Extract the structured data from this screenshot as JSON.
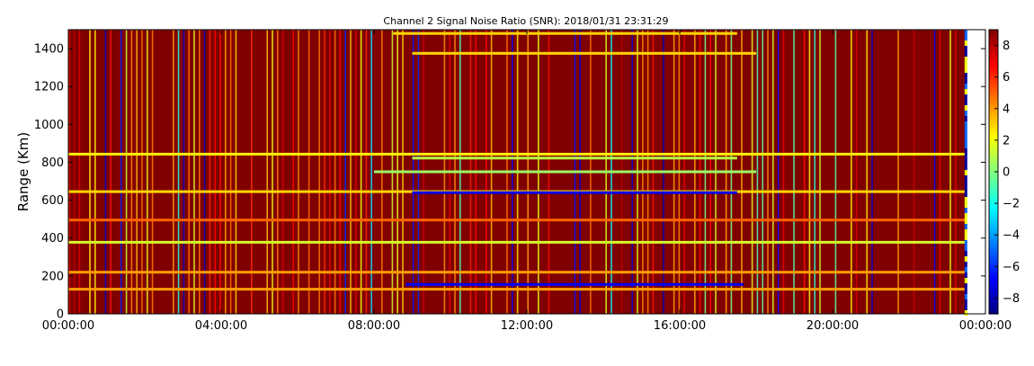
{
  "chart_data": {
    "type": "heatmap",
    "title": "Channel 2 Signal Noise Ratio (SNR): 2018/01/31 23:31:29",
    "xlabel": "",
    "ylabel": "Range (Km)",
    "x_range": [
      "00:00:00",
      "24:00:00"
    ],
    "x_ticks": [
      "00:00:00",
      "04:00:00",
      "08:00:00",
      "12:00:00",
      "16:00:00",
      "20:00:00",
      "00:00:00"
    ],
    "ylim": [
      0,
      1500
    ],
    "y_ticks": [
      0,
      200,
      400,
      600,
      800,
      1000,
      1200,
      1400
    ],
    "colorbar": {
      "colormap": "jet",
      "range": [
        -9,
        9
      ],
      "ticks": [
        -8,
        -6,
        -4,
        -2,
        0,
        2,
        4,
        6,
        8
      ]
    },
    "background_snr_db": 9,
    "data_end_time": "23:31:29",
    "features": [
      {
        "kind": "horizontal_band",
        "range_km": 843,
        "snr_db": 2.5,
        "from": "00:00:00",
        "to": "23:31:29"
      },
      {
        "kind": "horizontal_band",
        "range_km": 822,
        "snr_db": 1,
        "from": "09:00:00",
        "to": "17:30:00"
      },
      {
        "kind": "horizontal_band",
        "range_km": 750,
        "snr_db": 0.5,
        "from": "08:00:00",
        "to": "18:00:00"
      },
      {
        "kind": "horizontal_band",
        "range_km": 645,
        "snr_db": 3,
        "from": "00:00:00",
        "to": "23:31:29"
      },
      {
        "kind": "horizontal_band",
        "range_km": 640,
        "snr_db": -7,
        "from": "09:00:00",
        "to": "17:30:00"
      },
      {
        "kind": "horizontal_band",
        "range_km": 495,
        "snr_db": 5,
        "from": "00:00:00",
        "to": "23:31:29"
      },
      {
        "kind": "horizontal_band",
        "range_km": 378,
        "snr_db": 1.5,
        "from": "00:00:00",
        "to": "23:31:29"
      },
      {
        "kind": "horizontal_band",
        "range_km": 220,
        "snr_db": 4,
        "from": "00:00:00",
        "to": "23:31:29"
      },
      {
        "kind": "horizontal_band",
        "range_km": 155,
        "snr_db": -7,
        "from": "08:50:00",
        "to": "17:40:00"
      },
      {
        "kind": "horizontal_band",
        "range_km": 130,
        "snr_db": 4,
        "from": "00:00:00",
        "to": "23:31:29"
      },
      {
        "kind": "horizontal_band",
        "range_km": 1375,
        "snr_db": 3,
        "from": "09:00:00",
        "to": "18:00:00"
      },
      {
        "kind": "horizontal_band",
        "range_km": 1480,
        "snr_db": 3,
        "from": "08:30:00",
        "to": "17:30:00"
      }
    ]
  }
}
